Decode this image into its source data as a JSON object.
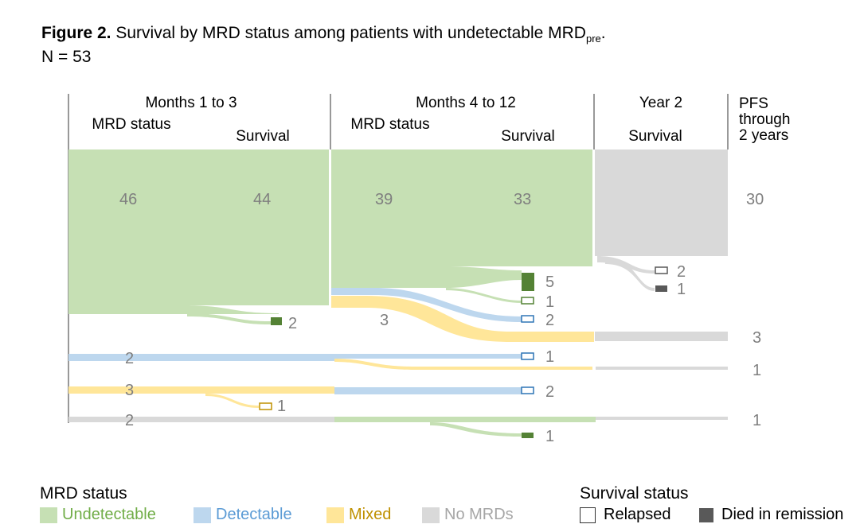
{
  "figure": {
    "title_bold": "Figure 2.",
    "title_text": "Survival by MRD status among patients with undetectable MRD",
    "title_sub": "pre",
    "title_end": ".",
    "subtitle": "N = 53"
  },
  "headers": {
    "months_1_3": "Months 1 to 3",
    "months_4_12": "Months 4 to 12",
    "year_2": "Year 2",
    "pfs": "PFS through 2 years",
    "mrd_status": "MRD status",
    "survival": "Survival"
  },
  "colors": {
    "undetectable": "#c6e0b4",
    "detectable": "#bdd7ee",
    "mixed": "#ffe699",
    "no_mrds": "#d9d9d9",
    "died": "#548235",
    "relapsed_undetectable": "#548235",
    "relapsed_detectable": "#2e75b6",
    "relapsed_mixed": "#bf9000",
    "relapsed_no_mrds": "#595959",
    "died_no_mrds": "#595959"
  },
  "labels": {
    "m1_undetectable": "46",
    "s1_undetectable": "44",
    "m2_undetectable": "39",
    "s2_undetectable": "33",
    "pfs_main": "30",
    "y2_relapsed": "2",
    "y2_died": "1",
    "s2_died_5": "5",
    "s2_relapsed_1": "1",
    "s2_relapsed_2": "2",
    "m2_mixed_3": "3",
    "pfs_3": "3",
    "s1_died_2": "2",
    "m1_detectable": "2",
    "s2_relapsed_1b": "1",
    "pfs_1a": "1",
    "m1_mixed": "3",
    "s2_relapsed_2b": "2",
    "s1_relapsed_1": "1",
    "m1_no_mrds": "2",
    "pfs_1b": "1",
    "s2_died_1": "1"
  },
  "legend": {
    "mrd_title": "MRD status",
    "undetectable": "Undetectable",
    "detectable": "Detectable",
    "mixed": "Mixed",
    "no_mrds": "No MRDs",
    "survival_title": "Survival status",
    "relapsed": "Relapsed",
    "died": "Died in remission"
  }
}
